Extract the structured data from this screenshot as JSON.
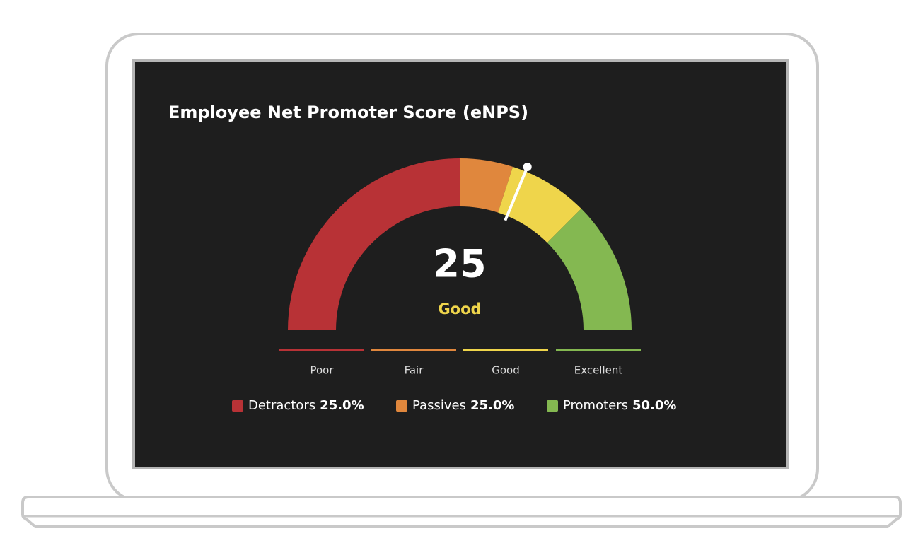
{
  "chart_data": {
    "type": "gauge",
    "title": "Employee Net Promoter Score (eNPS)",
    "range": [
      -100,
      100
    ],
    "value": 25,
    "status": "Good",
    "status_color": "#efd54b",
    "bands": [
      {
        "from": -100,
        "to": 0,
        "color": "#b83236"
      },
      {
        "from": 0,
        "to": 20,
        "color": "#e0873d"
      },
      {
        "from": 20,
        "to": 50,
        "color": "#efd54b"
      },
      {
        "from": 50,
        "to": 100,
        "color": "#84b851"
      }
    ],
    "scale": {
      "labels": [
        "Poor",
        "Fair",
        "Good",
        "Excellent"
      ],
      "colors": [
        "#b83236",
        "#e0873d",
        "#efd54b",
        "#84b851"
      ]
    },
    "legend": {
      "categories": [
        "Detractors",
        "Passives",
        "Promoters"
      ],
      "values": [
        25,
        25,
        50
      ],
      "value_labels": [
        "25.0%",
        "25.0%",
        "50.0%"
      ],
      "colors": [
        "#b83236",
        "#e0873d",
        "#84b851"
      ]
    }
  }
}
